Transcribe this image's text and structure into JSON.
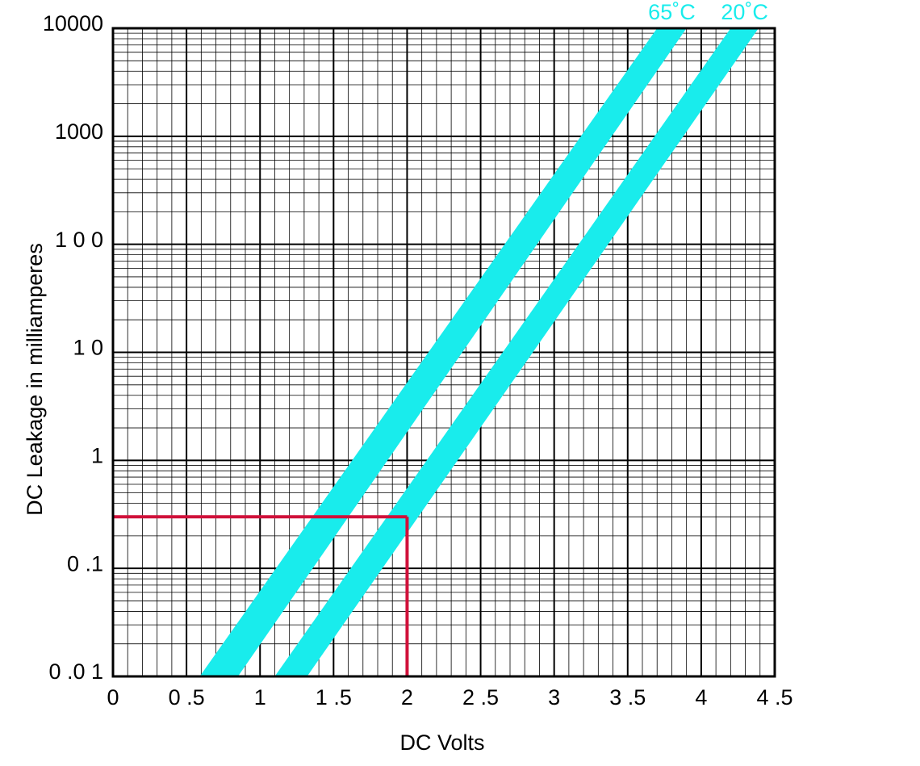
{
  "chart_data": {
    "type": "band",
    "x_label": "DC Volts",
    "y_label": "DC Leakage in milliamperes",
    "xlim": [
      0,
      4.5
    ],
    "ylim": [
      0.01,
      10000
    ],
    "log_y": true,
    "grid": true,
    "minor_grid": true,
    "xticks": [
      0,
      {
        "value": 0.5,
        "label": "0 .5"
      },
      1,
      {
        "value": 1.5,
        "label": "1 .5"
      },
      2,
      {
        "value": 2.5,
        "label": "2 .5"
      },
      3,
      {
        "value": 3.5,
        "label": "3 .5"
      },
      4,
      {
        "value": 4.5,
        "label": "4 .5"
      }
    ],
    "yticks": [
      {
        "value": 0.01,
        "label": "0 .0 1"
      },
      {
        "value": 0.1,
        "label": "0 .1"
      },
      1,
      {
        "value": 10,
        "label": "1 0"
      },
      {
        "value": 100,
        "label": "1 0 0"
      },
      1000,
      10000
    ],
    "series": [
      {
        "name": "65˚C",
        "color": "#19ecec",
        "y": [
          0.01,
          10000
        ],
        "x_min": [
          0.59,
          3.7
        ],
        "x_max": [
          0.85,
          3.9
        ]
      },
      {
        "name": "20˚C",
        "color": "#19ecec",
        "y": [
          0.01,
          10000
        ],
        "x_min": [
          1.1,
          4.2
        ],
        "x_max": [
          1.32,
          4.39
        ]
      }
    ],
    "reference": {
      "x": 2,
      "y": 0.3,
      "color": "#d0103a"
    }
  }
}
